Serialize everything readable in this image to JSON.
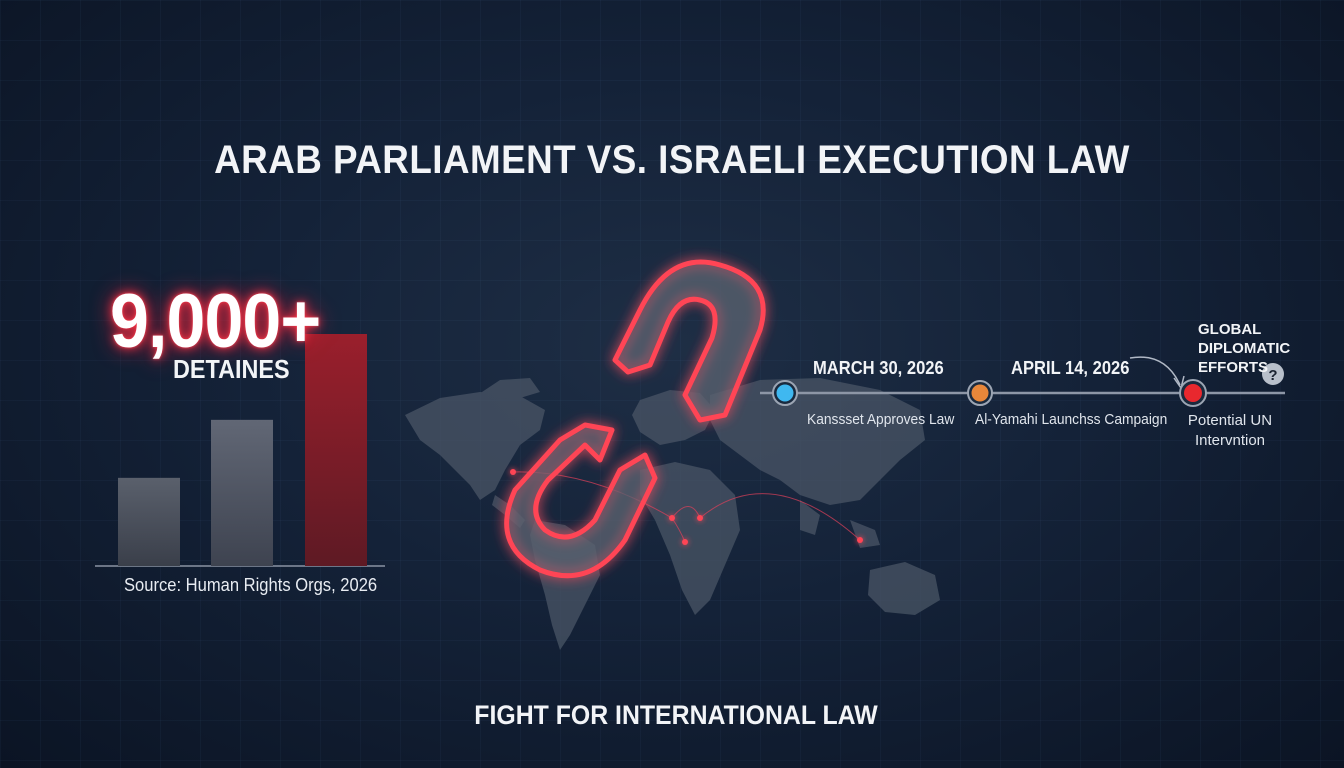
{
  "title": "ARAB PARLIAMENT VS. ISRAELI EXECUTION LAW",
  "stat": {
    "value": "9,000+",
    "label": "DETAINES"
  },
  "bar_chart": {
    "source": "Source: Human Rights Orgs, 2026",
    "relative_heights": [
      0.38,
      0.63,
      1.0
    ],
    "colors": [
      "#4a4f5c",
      "#525866",
      "#8a1e2a"
    ]
  },
  "timeline": {
    "events": [
      {
        "date": "MARCH 30, 2026",
        "label": "Kanssset Approves Law",
        "color": "#3fb8f0"
      },
      {
        "date": "APRIL 14, 2026",
        "label": "Al-Yamahi Launchss Campaign",
        "color": "#e8873a"
      },
      {
        "label_lines": [
          "Potential UN",
          "Intervntion"
        ],
        "color": "#e8282e"
      }
    ],
    "future_label_lines": [
      "GLOBAL",
      "DIPLOMATIC",
      "EFFORTS"
    ],
    "question_icon": "question-icon"
  },
  "footer": "FIGHT FOR INTERNATIONAL LAW",
  "colors": {
    "accent_red": "#e8282e",
    "background": "#142238",
    "glow": "#ff3344"
  }
}
